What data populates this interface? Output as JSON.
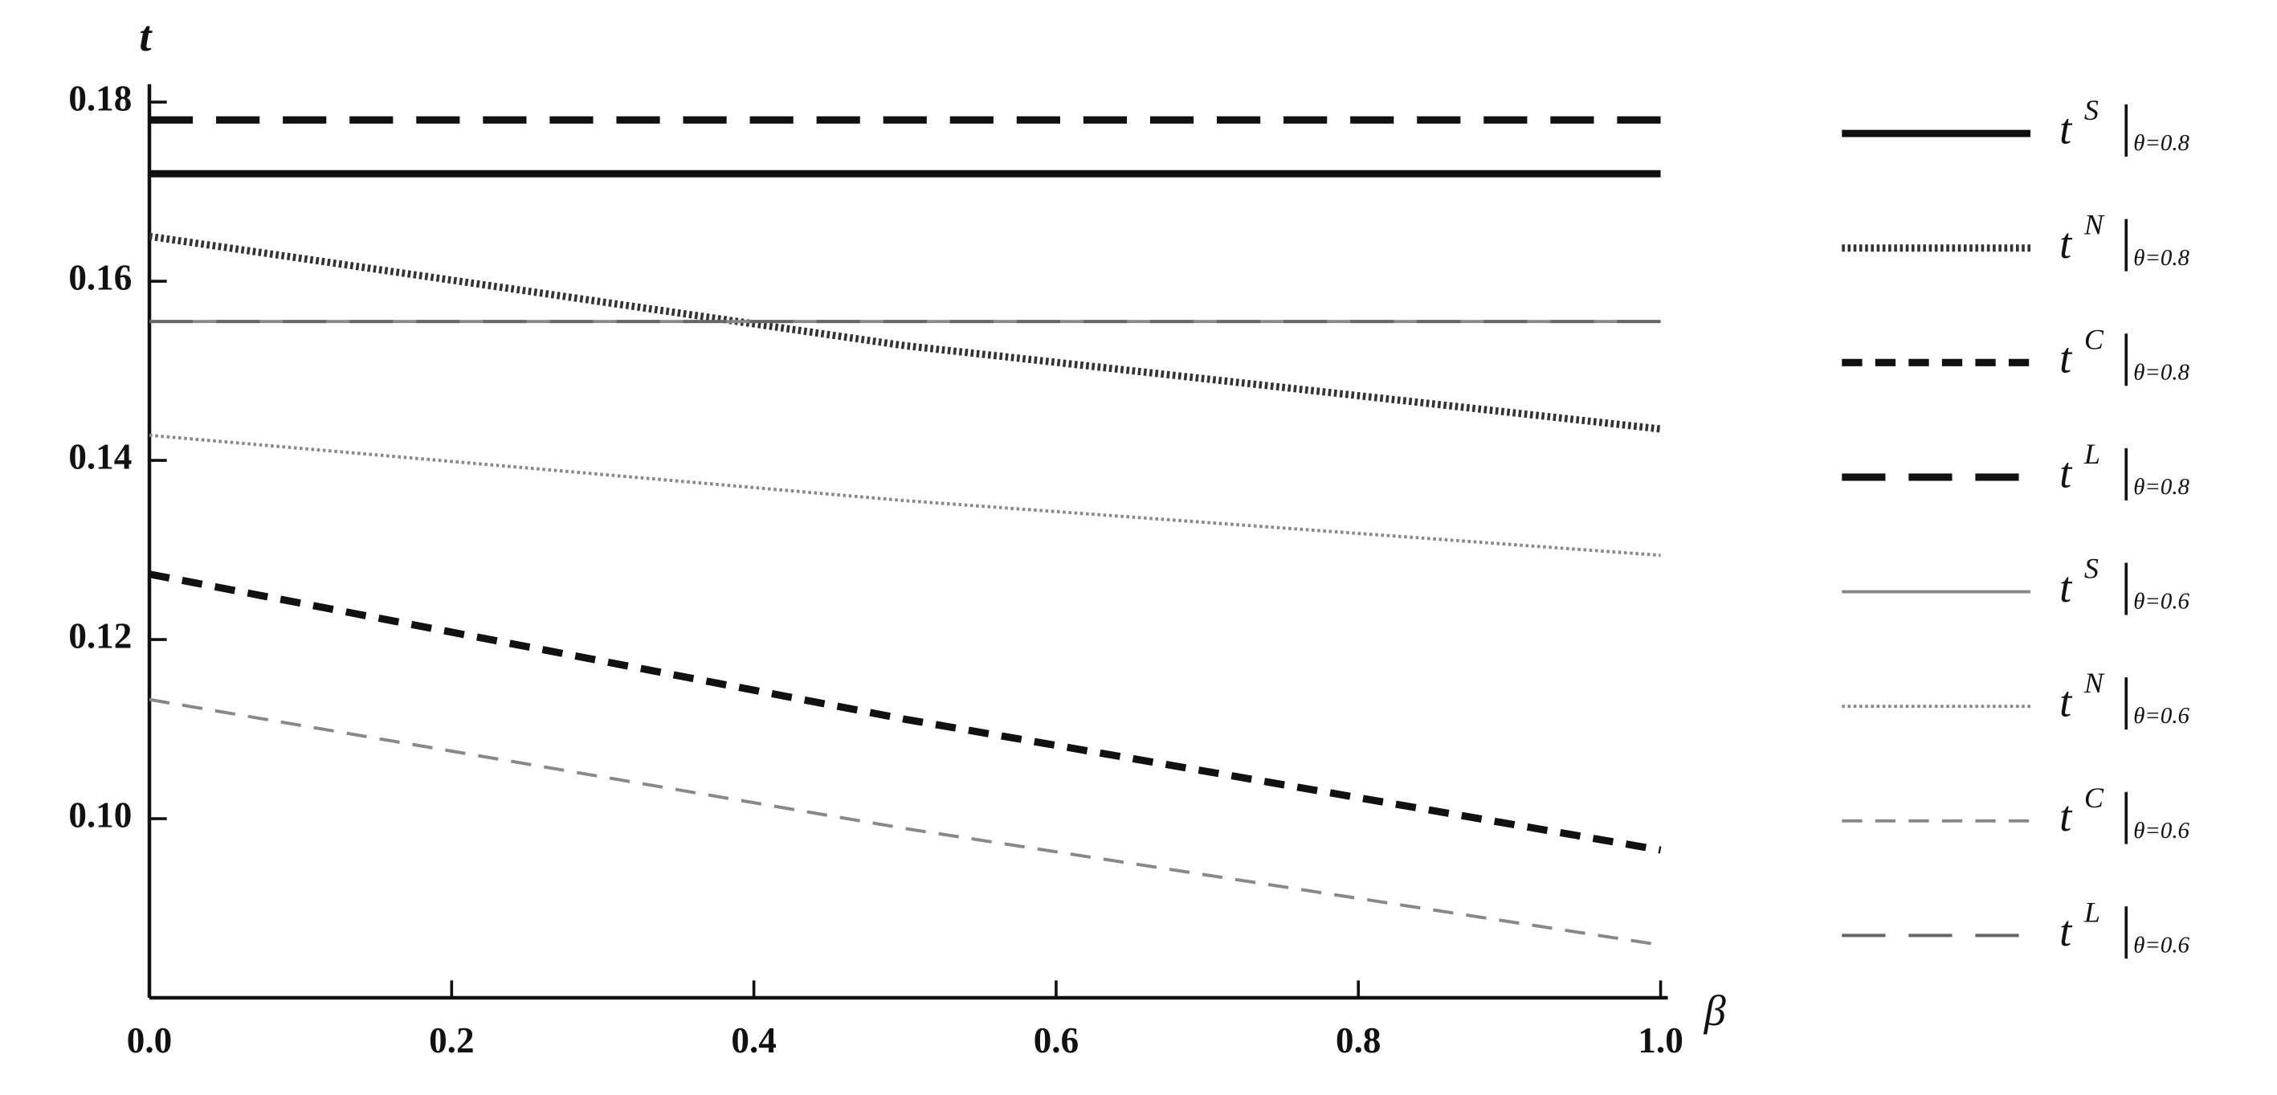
{
  "chart_data": {
    "type": "line",
    "x_label": "β",
    "y_label": "t",
    "xlim": [
      0,
      1
    ],
    "ylim": [
      0.08,
      0.182
    ],
    "xticks": [
      {
        "value": 0,
        "label": "0.0"
      },
      0.2,
      0.4,
      0.6,
      0.8,
      {
        "value": 1,
        "label": "1.0"
      }
    ],
    "yticks": [
      {
        "value": 0.1,
        "label": "0.10"
      },
      0.12,
      0.14,
      0.16,
      0.18
    ],
    "x": [
      0,
      0.5,
      1
    ],
    "series": [
      {
        "name": "t",
        "sup": "S",
        "sub": "θ=0.8",
        "color": "#111111",
        "dash": "solid",
        "weight": "thick",
        "values": [
          0.172,
          0.172,
          0.172
        ]
      },
      {
        "name": "t",
        "sup": "N",
        "sub": "θ=0.8",
        "color": "#333333",
        "dash": "dotted",
        "weight": "thick",
        "values": [
          0.165,
          0.1528,
          0.1435
        ]
      },
      {
        "name": "t",
        "sup": "C",
        "sub": "θ=0.8",
        "color": "#111111",
        "dash": "dashed",
        "weight": "thick",
        "values": [
          0.1273,
          0.1111,
          0.0965
        ]
      },
      {
        "name": "t",
        "sup": "L",
        "sub": "θ=0.8",
        "color": "#111111",
        "dash": "long-dashed",
        "weight": "thick",
        "values": [
          0.178,
          0.178,
          0.178
        ]
      },
      {
        "name": "t",
        "sup": "S",
        "sub": "θ=0.6",
        "color": "#888888",
        "dash": "solid",
        "weight": "thin",
        "values": [
          0.1555,
          0.1555,
          0.1555
        ]
      },
      {
        "name": "t",
        "sup": "N",
        "sub": "θ=0.6",
        "color": "#888888",
        "dash": "dotted",
        "weight": "thin",
        "values": [
          0.1428,
          0.1355,
          0.1294
        ]
      },
      {
        "name": "t",
        "sup": "C",
        "sub": "θ=0.6",
        "color": "#888888",
        "dash": "dashed",
        "weight": "thin",
        "values": [
          0.1133,
          0.0989,
          0.0859
        ]
      },
      {
        "name": "t",
        "sup": "L",
        "sub": "θ=0.6",
        "color": "#666666",
        "dash": "long-dashed",
        "weight": "thin",
        "values": [
          0.1555,
          0.1555,
          0.1555
        ]
      }
    ]
  }
}
